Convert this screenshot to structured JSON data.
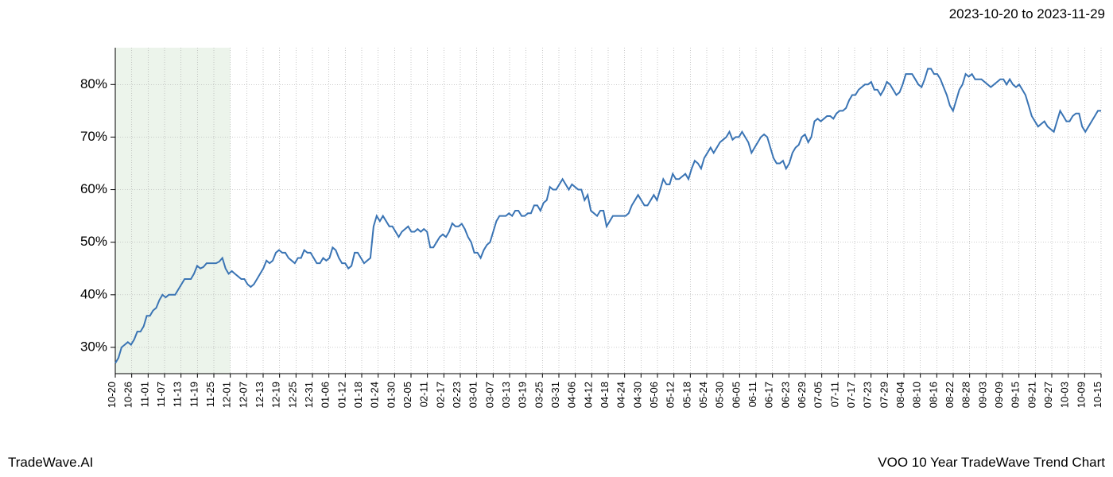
{
  "header": {
    "date_range": "2023-10-20 to 2023-11-29"
  },
  "footer": {
    "left": "TradeWave.AI",
    "right": "VOO 10 Year TradeWave Trend Chart"
  },
  "chart": {
    "type": "line",
    "background_color": "#ffffff",
    "grid_color": "#b0b0b0",
    "line_color": "#3a74b4",
    "highlight_band_color": "#c8dfc5",
    "line_width": 2,
    "y_axis": {
      "label_fontsize": 17,
      "ticks": [
        30,
        40,
        50,
        60,
        70,
        80
      ],
      "tick_labels": [
        "30%",
        "40%",
        "50%",
        "60%",
        "70%",
        "80%"
      ],
      "ymin": 25,
      "ymax": 87
    },
    "x_axis": {
      "label_fontsize": 13,
      "tick_labels": [
        "10-20",
        "10-26",
        "11-01",
        "11-07",
        "11-13",
        "11-19",
        "11-25",
        "12-01",
        "12-07",
        "12-13",
        "12-19",
        "12-25",
        "12-31",
        "01-06",
        "01-12",
        "01-18",
        "01-24",
        "01-30",
        "02-05",
        "02-11",
        "02-17",
        "02-23",
        "03-01",
        "03-07",
        "03-13",
        "03-19",
        "03-25",
        "03-31",
        "04-06",
        "04-12",
        "04-18",
        "04-24",
        "04-30",
        "05-06",
        "05-12",
        "05-18",
        "05-24",
        "05-30",
        "06-05",
        "06-11",
        "06-17",
        "06-23",
        "06-29",
        "07-05",
        "07-11",
        "07-17",
        "07-23",
        "07-29",
        "08-04",
        "08-10",
        "08-16",
        "08-22",
        "08-28",
        "09-03",
        "09-09",
        "09-15",
        "09-21",
        "09-27",
        "10-03",
        "10-09",
        "10-15"
      ]
    },
    "highlight_band": {
      "start_index": 0,
      "end_index": 7
    },
    "series": {
      "values": [
        27,
        28,
        30,
        30.5,
        31,
        30.5,
        31.5,
        33,
        33,
        34,
        36,
        36,
        37,
        37.5,
        39,
        40,
        39.5,
        40,
        40,
        40,
        41,
        42,
        43,
        43,
        43,
        44,
        45.5,
        45,
        45.3,
        46,
        46,
        46,
        46,
        46.3,
        47,
        45,
        44,
        44.5,
        44,
        43.5,
        43,
        43,
        42,
        41.5,
        42,
        43,
        44,
        45,
        46.5,
        46,
        46.5,
        48,
        48.5,
        48,
        48,
        47,
        46.5,
        46,
        47,
        47,
        48.5,
        48,
        48,
        47,
        46,
        46,
        47,
        46.5,
        47,
        49,
        48.5,
        47,
        46,
        46,
        45,
        45.5,
        48,
        48,
        47,
        46,
        46.5,
        47,
        53,
        55,
        54,
        55,
        54,
        53,
        53,
        52,
        51,
        52,
        52.5,
        53,
        52,
        52,
        52.5,
        52,
        52.5,
        52,
        49,
        49,
        50,
        51,
        51.5,
        51,
        52,
        53.6,
        53,
        53,
        53.5,
        52.5,
        51,
        50,
        48,
        48,
        47,
        48.5,
        49.5,
        50,
        52,
        54,
        55,
        55,
        55,
        55.5,
        55,
        56,
        56,
        55,
        55,
        55.5,
        55.5,
        57,
        57,
        56,
        57.5,
        58,
        60.5,
        60,
        60,
        61,
        62,
        61,
        60,
        61,
        60.5,
        60,
        60,
        58,
        59,
        56,
        55.5,
        55,
        56,
        56,
        53,
        54,
        55,
        55,
        55,
        55,
        55,
        55.5,
        57,
        58,
        59,
        58,
        57,
        57,
        58,
        59,
        58,
        60,
        62,
        61,
        61,
        63,
        62,
        62,
        62.5,
        63,
        62,
        64,
        65.5,
        65,
        64,
        66,
        67,
        68,
        67,
        68,
        69,
        69.5,
        70,
        71,
        69.5,
        70,
        70,
        71,
        70,
        69,
        67,
        68,
        69,
        70,
        70.5,
        70,
        68,
        66,
        65,
        65,
        65.5,
        64,
        65,
        67,
        68,
        68.5,
        70,
        70.5,
        69,
        70,
        73,
        73.5,
        73,
        73.5,
        74,
        74,
        73.5,
        74.5,
        75,
        75,
        75.5,
        77,
        78,
        78,
        79,
        79.5,
        80,
        80,
        80.5,
        79,
        79,
        78,
        79,
        80.5,
        80,
        79,
        78,
        78.5,
        80,
        82,
        82,
        82,
        81,
        80,
        79.5,
        81,
        83,
        83,
        82,
        82,
        81,
        79.5,
        78,
        76,
        75,
        77,
        79,
        80,
        82,
        81.5,
        82,
        81,
        81,
        81,
        80.5,
        80,
        79.5,
        80,
        80.5,
        81,
        81,
        80,
        81,
        80,
        79.5,
        80,
        79,
        78,
        76,
        74,
        73,
        72,
        72.5,
        73,
        72,
        71.5,
        71,
        73,
        75,
        74,
        73,
        73,
        74,
        74.5,
        74.5,
        72,
        71,
        72,
        73,
        74,
        75,
        75
      ]
    }
  }
}
